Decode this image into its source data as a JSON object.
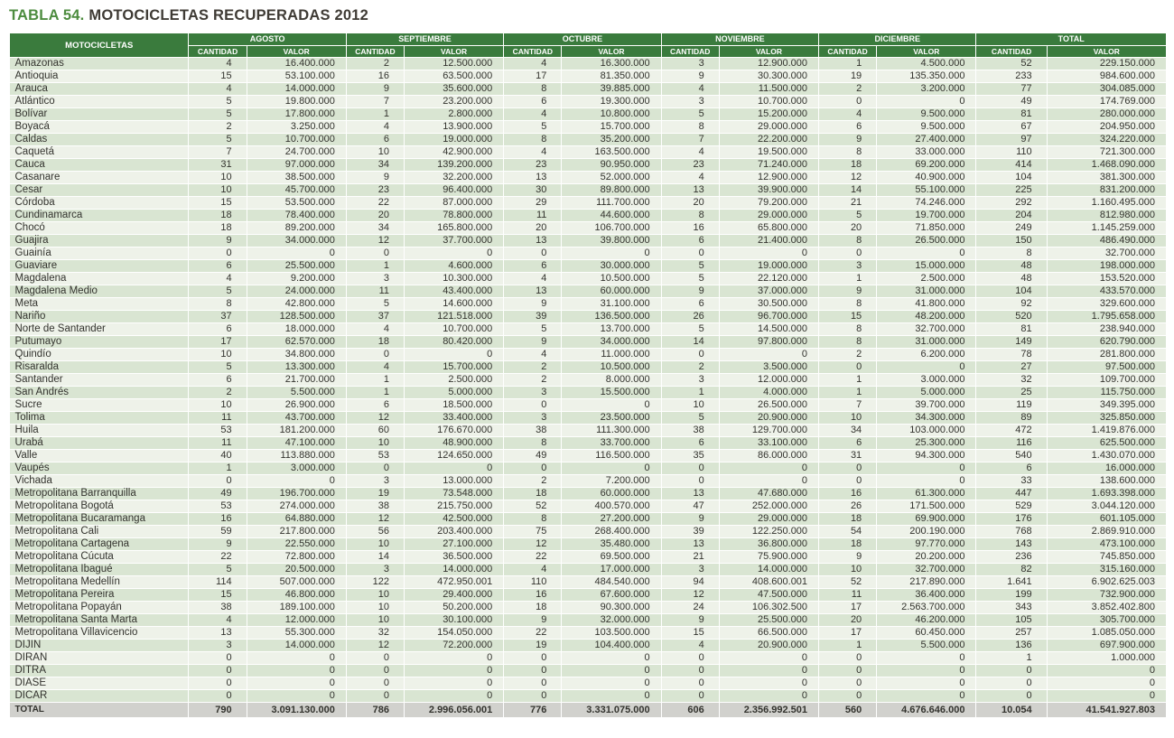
{
  "title": {
    "prefix": "TABLA 54.",
    "text": "MOTOCICLETAS RECUPERADAS 2012"
  },
  "colors": {
    "header_green": "#3a7b3d",
    "title_green": "#4d8c3f",
    "stripe_light_green": "#d9e5d2",
    "stripe_pale": "#eef2e9",
    "total_row_gray": "#d1d1cd"
  },
  "table": {
    "unit_col_header": "MOTOCICLETAS",
    "groups": [
      "AGOSTO",
      "SEPTIEMBRE",
      "OCTUBRE",
      "NOVIEMBRE",
      "DICIEMBRE",
      "TOTAL"
    ],
    "sub_headers": [
      "CANTIDAD",
      "VALOR"
    ],
    "rows": [
      {
        "name": "Amazonas",
        "values": [
          "4",
          "16.400.000",
          "2",
          "12.500.000",
          "4",
          "16.300.000",
          "3",
          "12.900.000",
          "1",
          "4.500.000",
          "52",
          "229.150.000"
        ]
      },
      {
        "name": "Antioquia",
        "values": [
          "15",
          "53.100.000",
          "16",
          "63.500.000",
          "17",
          "81.350.000",
          "9",
          "30.300.000",
          "19",
          "135.350.000",
          "233",
          "984.600.000"
        ]
      },
      {
        "name": "Arauca",
        "values": [
          "4",
          "14.000.000",
          "9",
          "35.600.000",
          "8",
          "39.885.000",
          "4",
          "11.500.000",
          "2",
          "3.200.000",
          "77",
          "304.085.000"
        ]
      },
      {
        "name": "Atlántico",
        "values": [
          "5",
          "19.800.000",
          "7",
          "23.200.000",
          "6",
          "19.300.000",
          "3",
          "10.700.000",
          "0",
          "0",
          "49",
          "174.769.000"
        ]
      },
      {
        "name": "Bolívar",
        "values": [
          "5",
          "17.800.000",
          "1",
          "2.800.000",
          "4",
          "10.800.000",
          "5",
          "15.200.000",
          "4",
          "9.500.000",
          "81",
          "280.000.000"
        ]
      },
      {
        "name": "Boyacá",
        "values": [
          "2",
          "3.250.000",
          "4",
          "13.900.000",
          "5",
          "15.700.000",
          "8",
          "29.000.000",
          "6",
          "9.500.000",
          "67",
          "204.950.000"
        ]
      },
      {
        "name": "Caldas",
        "values": [
          "5",
          "10.700.000",
          "6",
          "19.000.000",
          "8",
          "35.200.000",
          "7",
          "22.200.000",
          "9",
          "27.400.000",
          "97",
          "324.220.000"
        ]
      },
      {
        "name": "Caquetá",
        "values": [
          "7",
          "24.700.000",
          "10",
          "42.900.000",
          "4",
          "163.500.000",
          "4",
          "19.500.000",
          "8",
          "33.000.000",
          "110",
          "721.300.000"
        ]
      },
      {
        "name": "Cauca",
        "values": [
          "31",
          "97.000.000",
          "34",
          "139.200.000",
          "23",
          "90.950.000",
          "23",
          "71.240.000",
          "18",
          "69.200.000",
          "414",
          "1.468.090.000"
        ]
      },
      {
        "name": "Casanare",
        "values": [
          "10",
          "38.500.000",
          "9",
          "32.200.000",
          "13",
          "52.000.000",
          "4",
          "12.900.000",
          "12",
          "40.900.000",
          "104",
          "381.300.000"
        ]
      },
      {
        "name": "Cesar",
        "values": [
          "10",
          "45.700.000",
          "23",
          "96.400.000",
          "30",
          "89.800.000",
          "13",
          "39.900.000",
          "14",
          "55.100.000",
          "225",
          "831.200.000"
        ]
      },
      {
        "name": "Córdoba",
        "values": [
          "15",
          "53.500.000",
          "22",
          "87.000.000",
          "29",
          "111.700.000",
          "20",
          "79.200.000",
          "21",
          "74.246.000",
          "292",
          "1.160.495.000"
        ]
      },
      {
        "name": "Cundinamarca",
        "values": [
          "18",
          "78.400.000",
          "20",
          "78.800.000",
          "11",
          "44.600.000",
          "8",
          "29.000.000",
          "5",
          "19.700.000",
          "204",
          "812.980.000"
        ]
      },
      {
        "name": "Chocó",
        "values": [
          "18",
          "89.200.000",
          "34",
          "165.800.000",
          "20",
          "106.700.000",
          "16",
          "65.800.000",
          "20",
          "71.850.000",
          "249",
          "1.145.259.000"
        ]
      },
      {
        "name": "Guajira",
        "values": [
          "9",
          "34.000.000",
          "12",
          "37.700.000",
          "13",
          "39.800.000",
          "6",
          "21.400.000",
          "8",
          "26.500.000",
          "150",
          "486.490.000"
        ]
      },
      {
        "name": "Guainía",
        "values": [
          "0",
          "0",
          "0",
          "0",
          "0",
          "0",
          "0",
          "0",
          "0",
          "0",
          "8",
          "32.700.000"
        ]
      },
      {
        "name": "Guaviare",
        "values": [
          "6",
          "25.500.000",
          "1",
          "4.600.000",
          "6",
          "30.000.000",
          "5",
          "19.000.000",
          "3",
          "15.000.000",
          "48",
          "198.000.000"
        ]
      },
      {
        "name": "Magdalena",
        "values": [
          "4",
          "9.200.000",
          "3",
          "10.300.000",
          "4",
          "10.500.000",
          "5",
          "22.120.000",
          "1",
          "2.500.000",
          "48",
          "153.520.000"
        ]
      },
      {
        "name": "Magdalena Medio",
        "values": [
          "5",
          "24.000.000",
          "11",
          "43.400.000",
          "13",
          "60.000.000",
          "9",
          "37.000.000",
          "9",
          "31.000.000",
          "104",
          "433.570.000"
        ]
      },
      {
        "name": "Meta",
        "values": [
          "8",
          "42.800.000",
          "5",
          "14.600.000",
          "9",
          "31.100.000",
          "6",
          "30.500.000",
          "8",
          "41.800.000",
          "92",
          "329.600.000"
        ]
      },
      {
        "name": "Nariño",
        "values": [
          "37",
          "128.500.000",
          "37",
          "121.518.000",
          "39",
          "136.500.000",
          "26",
          "96.700.000",
          "15",
          "48.200.000",
          "520",
          "1.795.658.000"
        ]
      },
      {
        "name": "Norte de Santander",
        "values": [
          "6",
          "18.000.000",
          "4",
          "10.700.000",
          "5",
          "13.700.000",
          "5",
          "14.500.000",
          "8",
          "32.700.000",
          "81",
          "238.940.000"
        ]
      },
      {
        "name": "Putumayo",
        "values": [
          "17",
          "62.570.000",
          "18",
          "80.420.000",
          "9",
          "34.000.000",
          "14",
          "97.800.000",
          "8",
          "31.000.000",
          "149",
          "620.790.000"
        ]
      },
      {
        "name": "Quindío",
        "values": [
          "10",
          "34.800.000",
          "0",
          "0",
          "4",
          "11.000.000",
          "0",
          "0",
          "2",
          "6.200.000",
          "78",
          "281.800.000"
        ]
      },
      {
        "name": "Risaralda",
        "values": [
          "5",
          "13.300.000",
          "4",
          "15.700.000",
          "2",
          "10.500.000",
          "2",
          "3.500.000",
          "0",
          "0",
          "27",
          "97.500.000"
        ]
      },
      {
        "name": "Santander",
        "values": [
          "6",
          "21.700.000",
          "1",
          "2.500.000",
          "2",
          "8.000.000",
          "3",
          "12.000.000",
          "1",
          "3.000.000",
          "32",
          "109.700.000"
        ]
      },
      {
        "name": "San Andrés",
        "values": [
          "2",
          "5.500.000",
          "1",
          "5.000.000",
          "3",
          "15.500.000",
          "1",
          "4.000.000",
          "1",
          "5.000.000",
          "25",
          "115.750.000"
        ]
      },
      {
        "name": "Sucre",
        "values": [
          "10",
          "26.900.000",
          "6",
          "18.500.000",
          "0",
          "0",
          "10",
          "26.500.000",
          "7",
          "39.700.000",
          "119",
          "349.395.000"
        ]
      },
      {
        "name": "Tolima",
        "values": [
          "11",
          "43.700.000",
          "12",
          "33.400.000",
          "3",
          "23.500.000",
          "5",
          "20.900.000",
          "10",
          "34.300.000",
          "89",
          "325.850.000"
        ]
      },
      {
        "name": "Huila",
        "values": [
          "53",
          "181.200.000",
          "60",
          "176.670.000",
          "38",
          "111.300.000",
          "38",
          "129.700.000",
          "34",
          "103.000.000",
          "472",
          "1.419.876.000"
        ]
      },
      {
        "name": "Urabá",
        "values": [
          "11",
          "47.100.000",
          "10",
          "48.900.000",
          "8",
          "33.700.000",
          "6",
          "33.100.000",
          "6",
          "25.300.000",
          "116",
          "625.500.000"
        ]
      },
      {
        "name": "Valle",
        "values": [
          "40",
          "113.880.000",
          "53",
          "124.650.000",
          "49",
          "116.500.000",
          "35",
          "86.000.000",
          "31",
          "94.300.000",
          "540",
          "1.430.070.000"
        ]
      },
      {
        "name": "Vaupés",
        "values": [
          "1",
          "3.000.000",
          "0",
          "0",
          "0",
          "0",
          "0",
          "0",
          "0",
          "0",
          "6",
          "16.000.000"
        ]
      },
      {
        "name": "Vichada",
        "values": [
          "0",
          "0",
          "3",
          "13.000.000",
          "2",
          "7.200.000",
          "0",
          "0",
          "0",
          "0",
          "33",
          "138.600.000"
        ]
      },
      {
        "name": "Metropolitana Barranquilla",
        "values": [
          "49",
          "196.700.000",
          "19",
          "73.548.000",
          "18",
          "60.000.000",
          "13",
          "47.680.000",
          "16",
          "61.300.000",
          "447",
          "1.693.398.000"
        ]
      },
      {
        "name": "Metropolitana Bogotá",
        "values": [
          "53",
          "274.000.000",
          "38",
          "215.750.000",
          "52",
          "400.570.000",
          "47",
          "252.000.000",
          "26",
          "171.500.000",
          "529",
          "3.044.120.000"
        ]
      },
      {
        "name": "Metropolitana Bucaramanga",
        "values": [
          "16",
          "64.880.000",
          "12",
          "42.500.000",
          "8",
          "27.200.000",
          "9",
          "29.000.000",
          "18",
          "69.900.000",
          "176",
          "601.105.000"
        ]
      },
      {
        "name": "Metropolitana Cali",
        "values": [
          "59",
          "217.800.000",
          "56",
          "203.400.000",
          "75",
          "268.400.000",
          "39",
          "122.250.000",
          "54",
          "200.190.000",
          "768",
          "2.869.910.000"
        ]
      },
      {
        "name": "Metropolitana Cartagena",
        "values": [
          "9",
          "22.550.000",
          "10",
          "27.100.000",
          "12",
          "35.480.000",
          "13",
          "36.800.000",
          "18",
          "97.770.000",
          "143",
          "473.100.000"
        ]
      },
      {
        "name": "Metropolitana Cúcuta",
        "values": [
          "22",
          "72.800.000",
          "14",
          "36.500.000",
          "22",
          "69.500.000",
          "21",
          "75.900.000",
          "9",
          "20.200.000",
          "236",
          "745.850.000"
        ]
      },
      {
        "name": "Metropolitana Ibagué",
        "values": [
          "5",
          "20.500.000",
          "3",
          "14.000.000",
          "4",
          "17.000.000",
          "3",
          "14.000.000",
          "10",
          "32.700.000",
          "82",
          "315.160.000"
        ]
      },
      {
        "name": "Metropolitana Medellín",
        "values": [
          "114",
          "507.000.000",
          "122",
          "472.950.001",
          "110",
          "484.540.000",
          "94",
          "408.600.001",
          "52",
          "217.890.000",
          "1.641",
          "6.902.625.003"
        ]
      },
      {
        "name": "Metropolitana Pereira",
        "values": [
          "15",
          "46.800.000",
          "10",
          "29.400.000",
          "16",
          "67.600.000",
          "12",
          "47.500.000",
          "11",
          "36.400.000",
          "199",
          "732.900.000"
        ]
      },
      {
        "name": "Metropolitana Popayán",
        "values": [
          "38",
          "189.100.000",
          "10",
          "50.200.000",
          "18",
          "90.300.000",
          "24",
          "106.302.500",
          "17",
          "2.563.700.000",
          "343",
          "3.852.402.800"
        ]
      },
      {
        "name": "Metropolitana Santa Marta",
        "values": [
          "4",
          "12.000.000",
          "10",
          "30.100.000",
          "9",
          "32.000.000",
          "9",
          "25.500.000",
          "20",
          "46.200.000",
          "105",
          "305.700.000"
        ]
      },
      {
        "name": "Metropolitana Villavicencio",
        "values": [
          "13",
          "55.300.000",
          "32",
          "154.050.000",
          "22",
          "103.500.000",
          "15",
          "66.500.000",
          "17",
          "60.450.000",
          "257",
          "1.085.050.000"
        ]
      },
      {
        "name": "DIJIN",
        "values": [
          "3",
          "14.000.000",
          "12",
          "72.200.000",
          "19",
          "104.400.000",
          "4",
          "20.900.000",
          "1",
          "5.500.000",
          "136",
          "697.900.000"
        ]
      },
      {
        "name": "DIRAN",
        "values": [
          "0",
          "0",
          "0",
          "0",
          "0",
          "0",
          "0",
          "0",
          "0",
          "0",
          "1",
          "1.000.000"
        ]
      },
      {
        "name": "DITRA",
        "values": [
          "0",
          "0",
          "0",
          "0",
          "0",
          "0",
          "0",
          "0",
          "0",
          "0",
          "0",
          "0"
        ]
      },
      {
        "name": "DIASE",
        "values": [
          "0",
          "0",
          "0",
          "0",
          "0",
          "0",
          "0",
          "0",
          "0",
          "0",
          "0",
          "0"
        ]
      },
      {
        "name": "DICAR",
        "values": [
          "0",
          "0",
          "0",
          "0",
          "0",
          "0",
          "0",
          "0",
          "0",
          "0",
          "0",
          "0"
        ]
      }
    ],
    "total_row": {
      "name": "TOTAL",
      "values": [
        "790",
        "3.091.130.000",
        "786",
        "2.996.056.001",
        "776",
        "3.331.075.000",
        "606",
        "2.356.992.501",
        "560",
        "4.676.646.000",
        "10.054",
        "41.541.927.803"
      ]
    }
  }
}
